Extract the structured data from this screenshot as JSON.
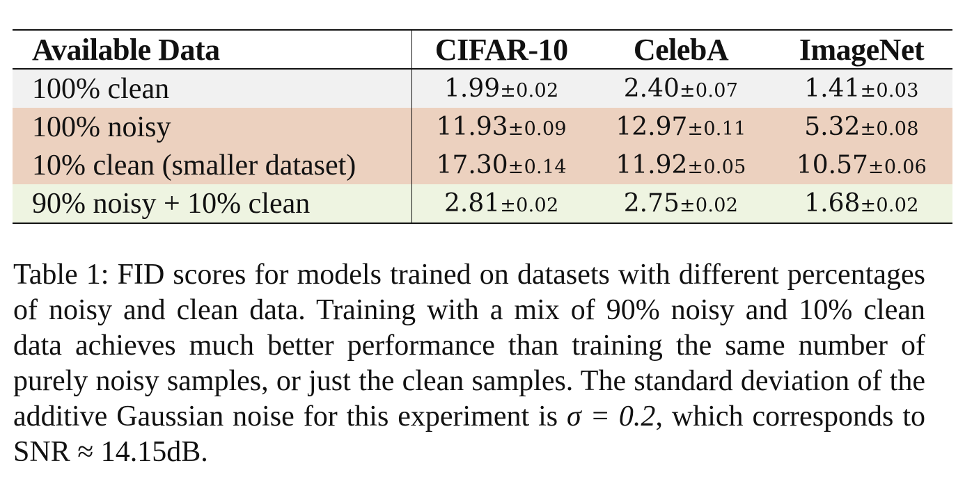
{
  "table": {
    "headers": [
      "Available Data",
      "CIFAR-10",
      "CelebA",
      "ImageNet"
    ],
    "rows": [
      {
        "label": "100% clean",
        "cells": [
          {
            "mean": "1.99",
            "std": "0.02"
          },
          {
            "mean": "2.40",
            "std": "0.07"
          },
          {
            "mean": "1.41",
            "std": "0.03"
          }
        ]
      },
      {
        "label": "100% noisy",
        "cells": [
          {
            "mean": "11.93",
            "std": "0.09"
          },
          {
            "mean": "12.97",
            "std": "0.11"
          },
          {
            "mean": "5.32",
            "std": "0.08"
          }
        ]
      },
      {
        "label": "10% clean (smaller dataset)",
        "cells": [
          {
            "mean": "17.30",
            "std": "0.14"
          },
          {
            "mean": "11.92",
            "std": "0.05"
          },
          {
            "mean": "10.57",
            "std": "0.06"
          }
        ]
      },
      {
        "label": "90% noisy + 10% clean",
        "cells": [
          {
            "mean": "2.81",
            "std": "0.02"
          },
          {
            "mean": "2.75",
            "std": "0.02"
          },
          {
            "mean": "1.68",
            "std": "0.02"
          }
        ]
      }
    ],
    "row_colors": {
      "clean": "#f1f1f1",
      "baseline": "#ecd1bf",
      "mixed": "#eef4e1"
    }
  },
  "caption": {
    "part1": "Table 1: FID scores for models trained on datasets with different percentages of noisy and clean data.  Training with a mix of 90% noisy and 10% clean data achieves much better performance than training the same number of purely noisy samples, or just the clean samples. The standard deviation of the additive Gaussian noise for this experiment is ",
    "sigma": "σ = 0.2",
    "part2": ", which corresponds to SNR ≈ 14.15dB."
  }
}
